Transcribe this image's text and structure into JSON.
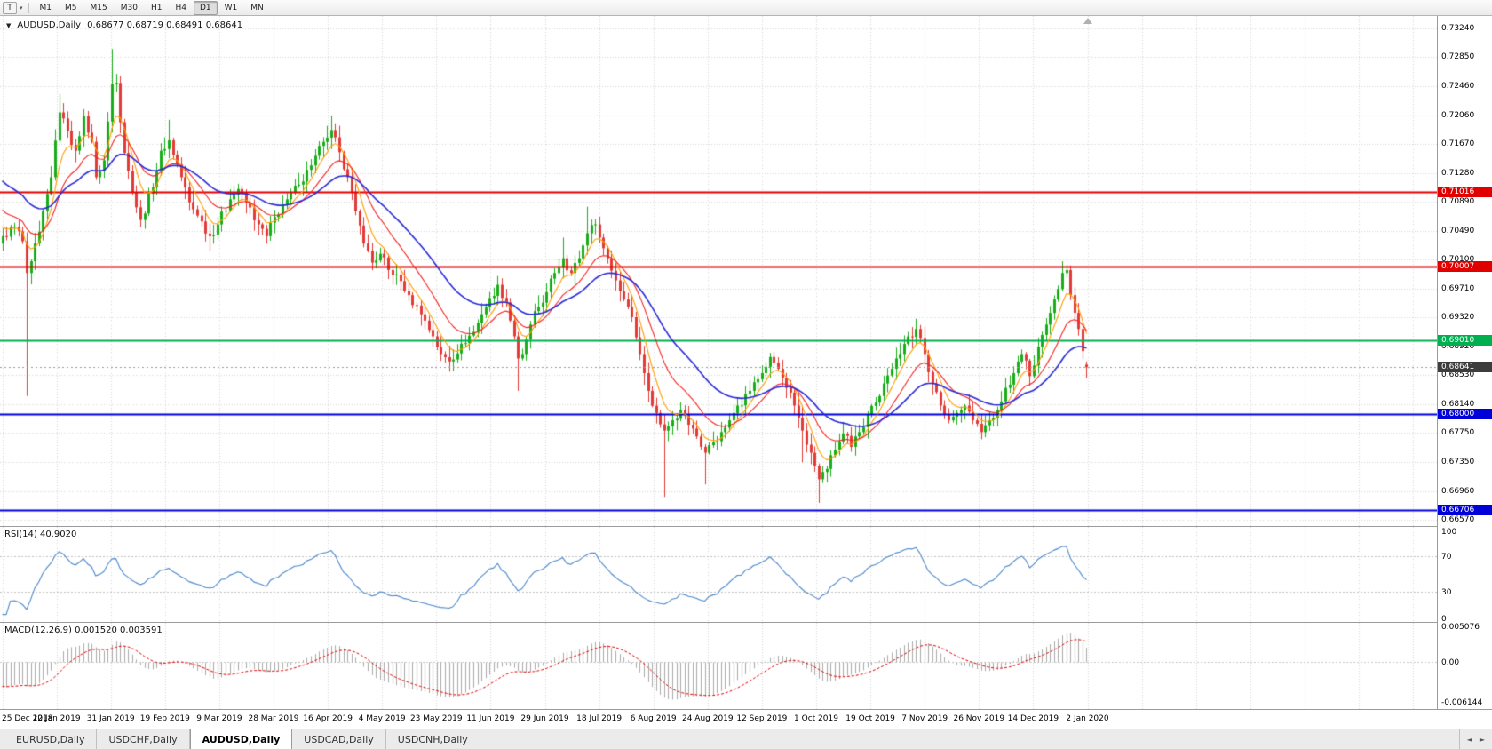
{
  "icons": {
    "chart_dropdown_arrow": "▼",
    "toolbar_dropdown_arrow": "▾",
    "tab_scroll_left": "◄",
    "tab_scroll_right": "►"
  },
  "toolbar": {
    "template_button_label": "T",
    "timeframes": [
      "M1",
      "M5",
      "M15",
      "M30",
      "H1",
      "H4",
      "D1",
      "W1",
      "MN"
    ],
    "active_timeframe": "D1"
  },
  "chart": {
    "symbol_title": "AUDUSD,Daily",
    "ohlc": "0.68677  0.68719  0.68491  0.68641"
  },
  "price_axis": {
    "top_price": 0.7324,
    "bottom_price": 0.6657,
    "labels": [
      "0.73240",
      "0.72850",
      "0.72460",
      "0.72060",
      "0.71670",
      "0.71280",
      "0.70890",
      "0.70490",
      "0.70100",
      "0.69710",
      "0.69320",
      "0.68920",
      "0.68530",
      "0.68140",
      "0.67750",
      "0.67350",
      "0.66960",
      "0.66570"
    ]
  },
  "hlines": [
    {
      "price": 0.71016,
      "label": "0.71016",
      "color": "#e00000",
      "width": 2
    },
    {
      "price": 0.70007,
      "label": "0.70007",
      "color": "#e00000",
      "width": 2
    },
    {
      "price": 0.6901,
      "label": "0.69010",
      "color": "#00b050",
      "width": 2
    },
    {
      "price": 0.68,
      "label": "0.68000",
      "color": "#0000d8",
      "width": 2
    },
    {
      "price": 0.66706,
      "label": "0.66706",
      "color": "#0000d8",
      "width": 2
    }
  ],
  "current_price": {
    "value": 0.68641,
    "label": "0.68641",
    "tag_bg": "#3d3d3d"
  },
  "rsi_panel": {
    "label": "RSI(14) 40.9020",
    "period": 14,
    "value": 40.902,
    "levels": [
      70,
      30
    ],
    "axis_labels": [
      "100",
      "70",
      "30",
      "0"
    ],
    "line_color": "#4a86c8"
  },
  "macd_panel": {
    "label": "MACD(12,26,9) 0.001520 0.003591",
    "fast": 12,
    "slow": 26,
    "signal": 9,
    "macd_value": 0.00152,
    "signal_value": 0.003591,
    "axis_top": "0.005076",
    "axis_zero": "0.00",
    "axis_bottom": "-0.006144",
    "scale_max": 0.005076,
    "scale_min": -0.006144,
    "hist_color": "#a9a9a9",
    "signal_color": "#e00000"
  },
  "date_axis": {
    "labels": [
      "25 Dec 2018",
      "12 Jan 2019",
      "31 Jan 2019",
      "19 Feb 2019",
      "9 Mar 2019",
      "28 Mar 2019",
      "16 Apr 2019",
      "4 May 2019",
      "23 May 2019",
      "11 Jun 2019",
      "29 Jun 2019",
      "18 Jul 2019",
      "6 Aug 2019",
      "24 Aug 2019",
      "12 Sep 2019",
      "1 Oct 2019",
      "19 Oct 2019",
      "7 Nov 2019",
      "26 Nov 2019",
      "14 Dec 2019",
      "2 Jan 2020"
    ]
  },
  "tabs": {
    "items": [
      {
        "label": "EURUSD,Daily",
        "active": false
      },
      {
        "label": "USDCHF,Daily",
        "active": false
      },
      {
        "label": "AUDUSD,Daily",
        "active": true
      },
      {
        "label": "USDCAD,Daily",
        "active": false
      },
      {
        "label": "USDCNH,Daily",
        "active": false
      }
    ]
  },
  "colors": {
    "grid": "#d6d6d6",
    "candle_up": "#18ad18",
    "candle_down": "#e23a36",
    "ma_fast": "#ff9d00",
    "ma_mid": "#f52020",
    "ma_slow": "#2929d6",
    "axis_text": "#000000"
  },
  "chart_data": {
    "type": "candlestick",
    "symbol": "AUDUSD",
    "timeframe": "Daily",
    "bar_count": 268,
    "last_bar": {
      "open": 0.68677,
      "high": 0.68719,
      "low": 0.68491,
      "close": 0.68641
    },
    "moving_averages": [
      {
        "kind": "ema",
        "period": 6,
        "color_key": "ma_fast",
        "line_width": 1.1
      },
      {
        "kind": "ema",
        "period": 14,
        "color_key": "ma_mid",
        "line_width": 1.1
      },
      {
        "kind": "ema",
        "period": 30,
        "color_key": "ma_slow",
        "line_width": 1.6
      }
    ],
    "prehistory_anchors": [
      [
        -60,
        0.731
      ],
      [
        -45,
        0.7255
      ],
      [
        -30,
        0.72
      ],
      [
        -18,
        0.715
      ],
      [
        -8,
        0.7085
      ],
      [
        -1,
        0.7048
      ]
    ],
    "anchors": [
      [
        0,
        0.7042
      ],
      [
        3,
        0.7055
      ],
      [
        5,
        0.7035
      ],
      [
        6,
        0.6992,
        0.6825,
        null
      ],
      [
        7,
        0.7008
      ],
      [
        9,
        0.7048
      ],
      [
        12,
        0.7122
      ],
      [
        14,
        0.721,
        null,
        0.7235
      ],
      [
        16,
        0.7185
      ],
      [
        18,
        0.7158
      ],
      [
        20,
        0.7205
      ],
      [
        22,
        0.717
      ],
      [
        23,
        0.7122
      ],
      [
        25,
        0.7145
      ],
      [
        27,
        0.7248,
        null,
        0.7296
      ],
      [
        28,
        0.725
      ],
      [
        30,
        0.7155
      ],
      [
        32,
        0.7102
      ],
      [
        34,
        0.7064
      ],
      [
        37,
        0.7108
      ],
      [
        39,
        0.7158
      ],
      [
        41,
        0.7172,
        null,
        0.72
      ],
      [
        44,
        0.7122
      ],
      [
        46,
        0.7088
      ],
      [
        48,
        0.707
      ],
      [
        51,
        0.7042,
        0.7022,
        null
      ],
      [
        53,
        0.7058
      ],
      [
        56,
        0.7092
      ],
      [
        58,
        0.7106
      ],
      [
        60,
        0.7088
      ],
      [
        63,
        0.7058
      ],
      [
        65,
        0.7042
      ],
      [
        67,
        0.7068
      ],
      [
        70,
        0.7092
      ],
      [
        73,
        0.7112
      ],
      [
        76,
        0.7138
      ],
      [
        79,
        0.717
      ],
      [
        81,
        0.7186,
        null,
        0.7206
      ],
      [
        83,
        0.7156
      ],
      [
        85,
        0.7122
      ],
      [
        87,
        0.7076
      ],
      [
        89,
        0.7032
      ],
      [
        91,
        0.7006
      ],
      [
        93,
        0.7018
      ],
      [
        95,
        0.6996
      ],
      [
        97,
        0.699
      ],
      [
        100,
        0.6962
      ],
      [
        103,
        0.6936
      ],
      [
        106,
        0.6906
      ],
      [
        108,
        0.6882
      ],
      [
        110,
        0.6872,
        0.6862,
        null
      ],
      [
        113,
        0.6896
      ],
      [
        116,
        0.6912
      ],
      [
        118,
        0.6936
      ],
      [
        120,
        0.6958
      ],
      [
        122,
        0.6976
      ],
      [
        124,
        0.6952
      ],
      [
        126,
        0.6906
      ],
      [
        127,
        0.6876,
        0.6832,
        null
      ],
      [
        128,
        0.6882
      ],
      [
        130,
        0.6922
      ],
      [
        132,
        0.6946
      ],
      [
        134,
        0.6966
      ],
      [
        136,
        0.6992
      ],
      [
        138,
        0.7012,
        null,
        0.704
      ],
      [
        140,
        0.6992
      ],
      [
        142,
        0.7012
      ],
      [
        144,
        0.7046,
        null,
        0.7082
      ],
      [
        146,
        0.7058
      ],
      [
        147,
        0.704
      ],
      [
        149,
        0.7012
      ],
      [
        151,
        0.6982
      ],
      [
        153,
        0.6956
      ],
      [
        155,
        0.6932
      ],
      [
        157,
        0.6882
      ],
      [
        159,
        0.6832
      ],
      [
        161,
        0.6802
      ],
      [
        163,
        0.6778,
        0.6688,
        null
      ],
      [
        165,
        0.6792
      ],
      [
        167,
        0.6806
      ],
      [
        169,
        0.6786
      ],
      [
        171,
        0.677
      ],
      [
        173,
        0.6748,
        0.6705,
        null
      ],
      [
        175,
        0.6762
      ],
      [
        177,
        0.6776
      ],
      [
        179,
        0.6792
      ],
      [
        181,
        0.6812
      ],
      [
        184,
        0.6832
      ],
      [
        187,
        0.6856
      ],
      [
        189,
        0.6878
      ],
      [
        191,
        0.6862
      ],
      [
        193,
        0.6836
      ],
      [
        195,
        0.6812
      ],
      [
        197,
        0.6778,
        0.6735,
        null
      ],
      [
        199,
        0.6748
      ],
      [
        201,
        0.6712,
        0.668,
        null
      ],
      [
        203,
        0.6726
      ],
      [
        205,
        0.6752
      ],
      [
        207,
        0.6774
      ],
      [
        209,
        0.6756
      ],
      [
        211,
        0.6776
      ],
      [
        213,
        0.68
      ],
      [
        215,
        0.6816
      ],
      [
        217,
        0.6842
      ],
      [
        219,
        0.6862
      ],
      [
        221,
        0.6882
      ],
      [
        223,
        0.6906
      ],
      [
        225,
        0.6916,
        null,
        0.693
      ],
      [
        227,
        0.6882
      ],
      [
        229,
        0.6842
      ],
      [
        231,
        0.6812
      ],
      [
        233,
        0.6792
      ],
      [
        235,
        0.6802
      ],
      [
        237,
        0.6812
      ],
      [
        239,
        0.6792
      ],
      [
        241,
        0.6776
      ],
      [
        243,
        0.6792
      ],
      [
        245,
        0.6806
      ],
      [
        247,
        0.6836
      ],
      [
        249,
        0.6856
      ],
      [
        251,
        0.6882
      ],
      [
        253,
        0.6852
      ],
      [
        255,
        0.6892
      ],
      [
        257,
        0.6922
      ],
      [
        259,
        0.6956
      ],
      [
        261,
        0.6992,
        null,
        0.7008
      ],
      [
        262,
        0.6996,
        null,
        0.7003
      ],
      [
        263,
        0.6962
      ],
      [
        264,
        0.6938
      ],
      [
        265,
        0.6916
      ],
      [
        266,
        0.6886
      ],
      [
        267,
        0.68641
      ]
    ]
  }
}
